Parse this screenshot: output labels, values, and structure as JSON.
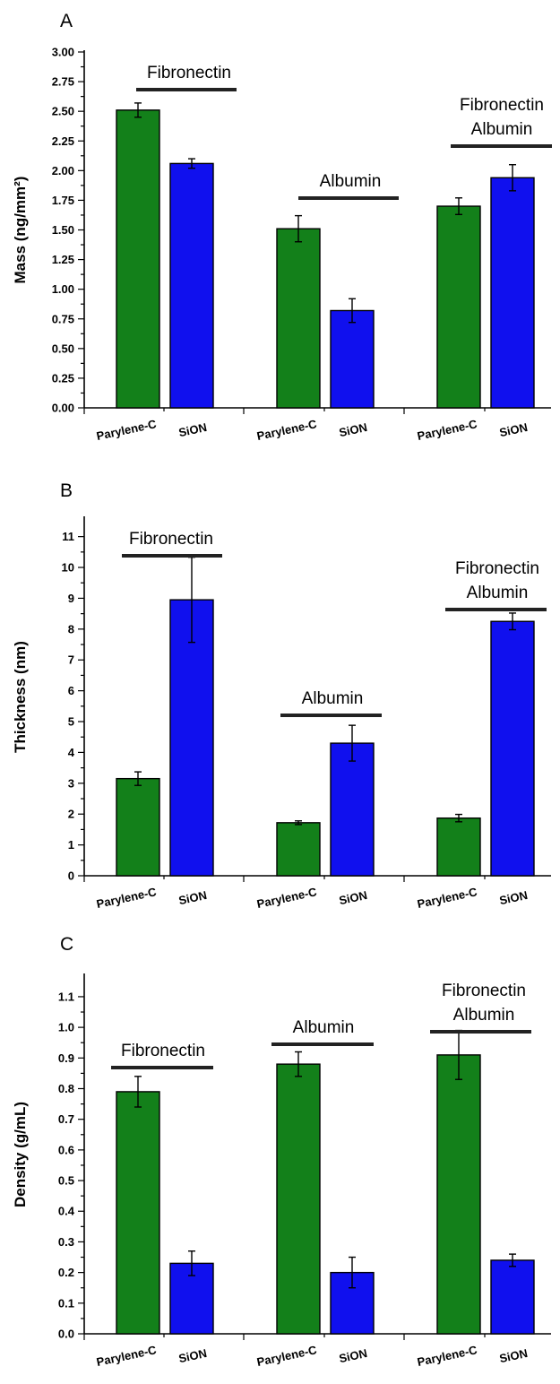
{
  "colors": {
    "parylene": "#13801a",
    "sion": "#1010ee"
  },
  "chart_data": [
    {
      "panel": "A",
      "type": "bar",
      "ylabel": "Mass (ng/mm²)",
      "ylim": [
        0,
        3.0
      ],
      "yticks": [
        "0.00",
        "0.25",
        "0.50",
        "0.75",
        "1.00",
        "1.25",
        "1.50",
        "1.75",
        "2.00",
        "2.25",
        "2.50",
        "2.75",
        "3.00"
      ],
      "groups": [
        {
          "label": [
            "Fibronectin"
          ],
          "bars": [
            {
              "category": "Parylene-C",
              "value": 2.51,
              "error": 0.06
            },
            {
              "category": "SiON",
              "value": 2.06,
              "error": 0.04
            }
          ]
        },
        {
          "label": [
            "Albumin"
          ],
          "bars": [
            {
              "category": "Parylene-C",
              "value": 1.51,
              "error": 0.11
            },
            {
              "category": "SiON",
              "value": 0.82,
              "error": 0.1
            }
          ]
        },
        {
          "label": [
            "Fibronectin",
            "Albumin"
          ],
          "bars": [
            {
              "category": "Parylene-C",
              "value": 1.7,
              "error": 0.07
            },
            {
              "category": "SiON",
              "value": 1.94,
              "error": 0.11
            }
          ]
        }
      ]
    },
    {
      "panel": "B",
      "type": "bar",
      "ylabel": "Thickness (nm)",
      "ylim": [
        0,
        11.6
      ],
      "yticks": [
        "0",
        "1",
        "2",
        "3",
        "4",
        "5",
        "6",
        "7",
        "8",
        "9",
        "10",
        "11"
      ],
      "groups": [
        {
          "label": [
            "Fibronectin"
          ],
          "bars": [
            {
              "category": "Parylene-C",
              "value": 3.15,
              "error": 0.22
            },
            {
              "category": "SiON",
              "value": 8.95,
              "error": 1.38
            }
          ]
        },
        {
          "label": [
            "Albumin"
          ],
          "bars": [
            {
              "category": "Parylene-C",
              "value": 1.72,
              "error": 0.06
            },
            {
              "category": "SiON",
              "value": 4.3,
              "error": 0.58
            }
          ]
        },
        {
          "label": [
            "Fibronectin",
            "Albumin"
          ],
          "bars": [
            {
              "category": "Parylene-C",
              "value": 1.87,
              "error": 0.12
            },
            {
              "category": "SiON",
              "value": 8.25,
              "error": 0.27
            }
          ]
        }
      ]
    },
    {
      "panel": "C",
      "type": "bar",
      "ylabel": "Density (g/mL)",
      "ylim": [
        0,
        1.17
      ],
      "yticks": [
        "0.0",
        "0.1",
        "0.2",
        "0.3",
        "0.4",
        "0.5",
        "0.6",
        "0.7",
        "0.8",
        "0.9",
        "1.0",
        "1.1"
      ],
      "groups": [
        {
          "label": [
            "Fibronectin"
          ],
          "bars": [
            {
              "category": "Parylene-C",
              "value": 0.79,
              "error": 0.05
            },
            {
              "category": "SiON",
              "value": 0.23,
              "error": 0.04
            }
          ]
        },
        {
          "label": [
            "Albumin"
          ],
          "bars": [
            {
              "category": "Parylene-C",
              "value": 0.88,
              "error": 0.04
            },
            {
              "category": "SiON",
              "value": 0.2,
              "error": 0.05
            }
          ]
        },
        {
          "label": [
            "Fibronectin",
            "Albumin"
          ],
          "bars": [
            {
              "category": "Parylene-C",
              "value": 0.91,
              "error": 0.08
            },
            {
              "category": "SiON",
              "value": 0.24,
              "error": 0.02
            }
          ]
        }
      ]
    }
  ]
}
